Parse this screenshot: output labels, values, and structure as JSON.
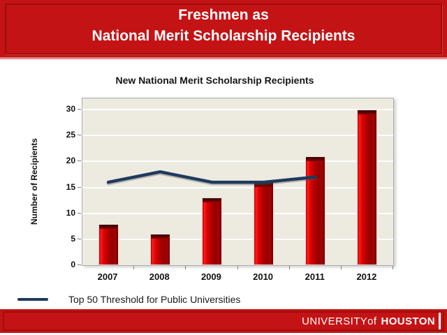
{
  "slide": {
    "title_line1": "Freshmen as",
    "title_line2": "National Merit Scholarship Recipients"
  },
  "chart_data": {
    "type": "bar",
    "title": "New National Merit Scholarship Recipients",
    "xlabel": "",
    "ylabel": "Number of Recipients",
    "categories": [
      "2007",
      "2008",
      "2009",
      "2010",
      "2011",
      "2012"
    ],
    "series": [
      {
        "name": "New National Merit Scholarship Recipients",
        "type": "bar",
        "values": [
          8,
          6,
          13,
          16,
          21,
          30
        ]
      },
      {
        "name": "Top 50 Threshold for Public Universities",
        "type": "line",
        "values": [
          16,
          18,
          16,
          16,
          17,
          null
        ]
      }
    ],
    "ylim": [
      0,
      30
    ],
    "ytick_step": 5,
    "grid": "horizontal",
    "legend_position": "bottom-left",
    "plot_background": "#EDEAE0",
    "bar_color": "#C00000",
    "line_color": "#1F3A5C"
  },
  "legend": {
    "label": "Top 50 Threshold for Public Universities"
  },
  "footer": {
    "brand_university": "UNIVERSITY",
    "brand_of": "of",
    "brand_houston": "HOUSTON"
  },
  "colors": {
    "banner_red": "#C41315",
    "banner_border": "#9E0D0D",
    "banner_underline": "#DB9090",
    "navy_line": "#1F3A5C"
  }
}
